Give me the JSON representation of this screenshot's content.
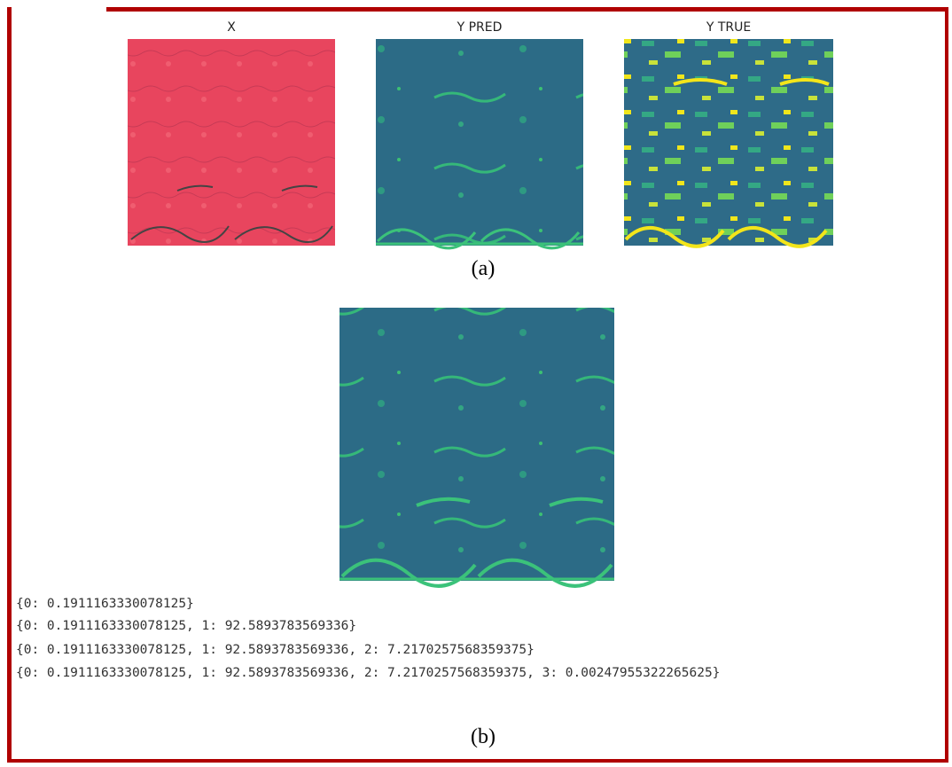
{
  "panel_a": {
    "titles": [
      "X",
      "Y PRED",
      "Y TRUE"
    ],
    "caption": "(a)"
  },
  "panel_b": {
    "output_lines": [
      "{0: 0.1911163330078125}",
      "{0: 0.1911163330078125, 1: 92.5893783569336}",
      "{0: 0.1911163330078125, 1: 92.5893783569336, 2: 7.2170257568359375}",
      "{0: 0.1911163330078125, 1: 92.5893783569336, 2: 7.2170257568359375, 3: 0.00247955322265625}"
    ],
    "caption": "(b)"
  }
}
